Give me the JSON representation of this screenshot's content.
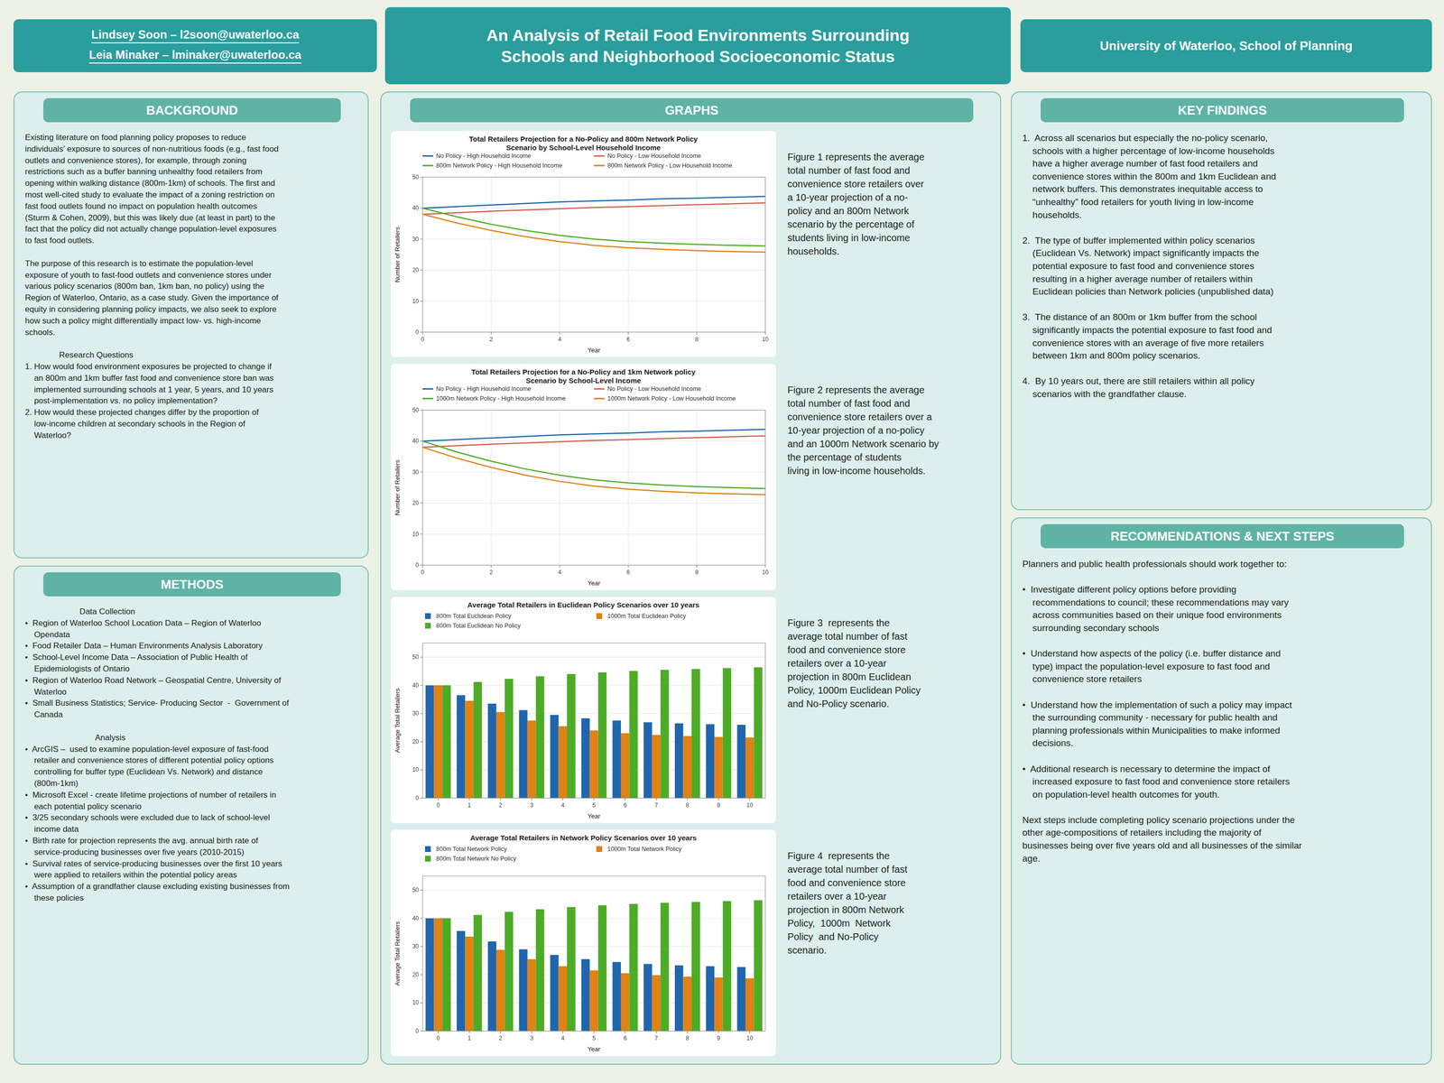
{
  "page": {
    "title": "An Analysis of Retail Food Environments Surrounding\nSchools and Neighborhood Socioeconomic Status",
    "authors": [
      "Lindsey Soon – l2soon@uwaterloo.ca",
      "Leia Minaker – lminaker@uwaterloo.ca"
    ],
    "affiliation": "University of Waterloo, School of Planning",
    "sections": [
      {
        "title": "BACKGROUND",
        "text": "Existing literature on food planning policy proposes to reduce\nindividuals’ exposure to sources of non-nutritious foods (e.g., fast food\noutlets and convenience stores), for example, through zoning\nrestrictions such as a buffer banning unhealthy food retailers from\nopening within walking distance (800m-1km) of schools. The first and\nmost well-cited study to evaluate the impact of a zoning restriction on\nfast food outlets found no impact on population health outcomes\n(Sturm & Cohen, 2009), but this was likely due (at least in part) to the\nfact that the policy did not actually change population-level exposures\nto fast food outlets.\n\nThe purpose of this research is to estimate the population-level\nexposure of youth to fast-food outlets and convenience stores under\nvarious policy scenarios (800m ban, 1km ban, no policy) using the\nRegion of Waterloo, Ontario, as a case study. Given the importance of\nequity in considering planning policy impacts, we also seek to explore\nhow such a policy might differentially impact low- vs. high-income\nschools.\n\n               Research Questions\n1. How would food environment exposures be projected to change if\n    an 800m and 1km buffer fast food and convenience store ban was\n    implemented surrounding schools at 1 year, 5 years, and 10 years\n    post-implementation vs. no policy implementation?\n2. How would these projected changes differ by the proportion of\n    low-income children at secondary schools in the Region of\n    Waterloo?"
      },
      {
        "title": "METHODS",
        "text": "                        Data Collection\n•  Region of Waterloo School Location Data – Region of Waterloo\n    Opendata\n•  Food Retailer Data – Human Environments Analysis Laboratory\n•  School-Level Income Data – Association of Public Health of\n    Epidemiologists of Ontario\n•  Region of Waterloo Road Network – Geospatial Centre, University of\n    Waterloo\n•  Small Business Statistics; Service- Producing Sector  -  Government of\n    Canada\n\n                               Analysis\n•  ArcGIS –  used to examine population-level exposure of fast-food\n    retailer and convenience stores of different potential policy options\n    controlling for buffer type (Euclidean Vs. Network) and distance\n    (800m-1km)\n•  Microsoft Excel - create lifetime projections of number of retailers in\n    each potential policy scenario\n•  3/25 secondary schools were excluded due to lack of school-level\n    income data\n•  Birth rate for projection represents the avg. annual birth rate of\n    service-producing businesses over five years (2010-2015)\n•  Survival rates of service-producing businesses over the first 10 years\n    were applied to retailers within the potential policy areas\n•  Assumption of a grandfather clause excluding existing businesses from\n    these policies"
      },
      {
        "title": "GRAPHS"
      },
      {
        "title": "KEY FINDINGS",
        "text": "1.  Across all scenarios but especially the no-policy scenario,\n    schools with a higher percentage of low-income households\n    have a higher average number of fast food retailers and\n    convenience stores within the 800m and 1km Euclidean and\n    network buffers. This demonstrates inequitable access to\n    “unhealthy” food retailers for youth living in low-income\n    households.\n\n2.  The type of buffer implemented within policy scenarios\n    (Euclidean Vs. Network) impact significantly impacts the\n    potential exposure to fast food and convenience stores\n    resulting in a higher average number of retailers within\n    Euclidean policies than Network policies (unpublished data)\n\n3.  The distance of an 800m or 1km buffer from the school\n    significantly impacts the potential exposure to fast food and\n    convenience stores with an average of five more retailers\n    between 1km and 800m policy scenarios.\n\n4.  By 10 years out, there are still retailers within all policy\n    scenarios with the grandfather clause."
      },
      {
        "title": "RECOMMENDATIONS & NEXT STEPS",
        "text": "Planners and public health professionals should work together to:\n\n•  Investigate different policy options before providing\n    recommendations to council; these recommendations may vary\n    across communities based on their unique food environments\n    surrounding secondary schools\n\n•  Understand how aspects of the policy (i.e. buffer distance and\n    type) impact the population-level exposure to fast food and\n    convenience store retailers\n\n•  Understand how the implementation of such a policy may impact\n    the surrounding community - necessary for public health and\n    planning professionals within Municipalities to make informed\n    decisions.\n\n•  Additional research is necessary to determine the impact of\n    increased exposure to fast food and convenience store retailers\n    on population-level health outcomes for youth.\n\nNext steps include completing policy scenario projections under the\nother age-compositions of retailers including the majority of\nbusinesses being over five years old and all businesses of the similar\nage."
      }
    ]
  },
  "chart_data": [
    {
      "type": "line",
      "title": "Total Retailers Projection for a No-Policy and 800m Network Policy\nScenario by School-Level Household Income",
      "xlabel": "Year",
      "ylabel": "Number of Retailers",
      "x": [
        0,
        1,
        2,
        3,
        4,
        5,
        6,
        7,
        8,
        9,
        10
      ],
      "xlim": [
        0,
        10
      ],
      "xticks": [
        0,
        2,
        4,
        6,
        8,
        10
      ],
      "ylim": [
        0,
        50
      ],
      "yticks": [
        0,
        10,
        20,
        30,
        40,
        50
      ],
      "grid": true,
      "legend": "top",
      "series": [
        {
          "name": "No Policy - High Household Income",
          "color": "#2166ac",
          "values": [
            40,
            40.5,
            41,
            41.5,
            42,
            42.3,
            42.6,
            43,
            43.2,
            43.5,
            43.8
          ]
        },
        {
          "name": "No Policy - Low Household Income",
          "color": "#d6604d",
          "values": [
            38,
            38.5,
            39,
            39.4,
            39.8,
            40.2,
            40.5,
            40.8,
            41.1,
            41.4,
            41.7
          ]
        },
        {
          "name": "800m Network Policy - High Household Income",
          "color": "#4dac26",
          "values": [
            40,
            37.2,
            34.8,
            32.8,
            31.2,
            30.0,
            29.2,
            28.7,
            28.3,
            28.0,
            27.8
          ]
        },
        {
          "name": "800m Network Policy - Low Household Income",
          "color": "#e08214",
          "values": [
            38,
            35.2,
            32.8,
            30.8,
            29.2,
            28.0,
            27.2,
            26.7,
            26.3,
            26.0,
            25.8
          ]
        }
      ],
      "annotations": [
        "Figure 1 represents the average\ntotal number of fast food and\nconvenience store retailers over\na 10-year projection of a no-\npolicy and an 800m Network\nscenario by the percentage of\nstudents living in low-income\nhouseholds."
      ]
    },
    {
      "type": "line",
      "title": "Total Retailers Projection for a No-Policy and 1km Network policy\nScenario by School-Level Income",
      "xlabel": "Year",
      "ylabel": "Number of Retailers",
      "x": [
        0,
        1,
        2,
        3,
        4,
        5,
        6,
        7,
        8,
        9,
        10
      ],
      "xlim": [
        0,
        10
      ],
      "xticks": [
        0,
        2,
        4,
        6,
        8,
        10
      ],
      "ylim": [
        0,
        50
      ],
      "yticks": [
        0,
        10,
        20,
        30,
        40,
        50
      ],
      "grid": true,
      "legend": "top",
      "series": [
        {
          "name": "No Policy - High Household Income",
          "color": "#2166ac",
          "values": [
            40,
            40.5,
            41,
            41.5,
            42,
            42.3,
            42.6,
            43,
            43.2,
            43.5,
            43.8
          ]
        },
        {
          "name": "No Policy - Low Household Income",
          "color": "#d6604d",
          "values": [
            38,
            38.5,
            39,
            39.4,
            39.8,
            40.2,
            40.5,
            40.8,
            41.1,
            41.4,
            41.7
          ]
        },
        {
          "name": "1000m Network Policy - High Household Income",
          "color": "#4dac26",
          "values": [
            40,
            36.5,
            33.5,
            31.0,
            29.0,
            27.5,
            26.5,
            25.8,
            25.3,
            25.0,
            24.7
          ]
        },
        {
          "name": "1000m Network Policy - Low Household Income",
          "color": "#e08214",
          "values": [
            38,
            34.5,
            31.5,
            29.0,
            27.0,
            25.5,
            24.5,
            23.8,
            23.3,
            23.0,
            22.7
          ]
        }
      ],
      "annotations": [
        "Figure 2 represents the average\ntotal number of fast food and\nconvenience store retailers over a\n10-year projection of a no-policy\nand an 1000m Network scenario by\nthe percentage of students\nliving in low-income households."
      ]
    },
    {
      "type": "bar",
      "title": "Average Total Retailers in Euclidean Policy Scenarios over 10 years",
      "xlabel": "Year",
      "ylabel": "Average Total Retailers",
      "categories": [
        "0",
        "1",
        "2",
        "3",
        "4",
        "5",
        "6",
        "7",
        "8",
        "9",
        "10"
      ],
      "ylim": [
        0,
        55
      ],
      "yticks": [
        0,
        10,
        20,
        30,
        40,
        50
      ],
      "grid": "y",
      "legend": "top",
      "series": [
        {
          "name": "800m Total Euclidean Policy",
          "color": "#2166ac",
          "values": [
            40,
            36.5,
            33.5,
            31.2,
            29.5,
            28.3,
            27.5,
            26.9,
            26.5,
            26.2,
            26.0
          ]
        },
        {
          "name": "1000m Total Euclidean Policy",
          "color": "#e08214",
          "values": [
            40,
            34.5,
            30.5,
            27.5,
            25.5,
            24.0,
            23.0,
            22.4,
            22.0,
            21.7,
            21.5
          ]
        },
        {
          "name": "800m Total Euclidean No Policy",
          "color": "#4dac26",
          "values": [
            40,
            41.2,
            42.3,
            43.2,
            44.0,
            44.6,
            45.1,
            45.5,
            45.8,
            46.1,
            46.4
          ]
        }
      ],
      "annotations": [
        "Figure 3  represents the\naverage total number of fast\nfood and convenience store\nretailers over a 10-year\nprojection in 800m Euclidean\nPolicy, 1000m Euclidean Policy\nand No-Policy scenario."
      ]
    },
    {
      "type": "bar",
      "title": "Average Total Retailers in Network Policy Scenarios over 10 years",
      "xlabel": "Year",
      "ylabel": "Average Total Retailers",
      "categories": [
        "0",
        "1",
        "2",
        "3",
        "4",
        "5",
        "6",
        "7",
        "8",
        "9",
        "10"
      ],
      "ylim": [
        0,
        55
      ],
      "yticks": [
        0,
        10,
        20,
        30,
        40,
        50
      ],
      "grid": "y",
      "legend": "top",
      "series": [
        {
          "name": "800m Total Network Policy",
          "color": "#2166ac",
          "values": [
            40,
            35.5,
            31.8,
            29.0,
            27.0,
            25.5,
            24.5,
            23.8,
            23.3,
            23.0,
            22.7
          ]
        },
        {
          "name": "1000m Total Network Policy",
          "color": "#e08214",
          "values": [
            40,
            33.5,
            28.8,
            25.5,
            23.0,
            21.5,
            20.5,
            19.8,
            19.3,
            19.0,
            18.7
          ]
        },
        {
          "name": "800m Total Network No Policy",
          "color": "#4dac26",
          "values": [
            40,
            41.2,
            42.3,
            43.2,
            44.0,
            44.6,
            45.1,
            45.5,
            45.8,
            46.1,
            46.4
          ]
        }
      ],
      "annotations": [
        "Figure 4  represents the\naverage total number of fast\nfood and convenience store\nretailers over a 10-year\nprojection in 800m Network\nPolicy,  1000m  Network\nPolicy  and No-Policy\nscenario."
      ]
    }
  ]
}
